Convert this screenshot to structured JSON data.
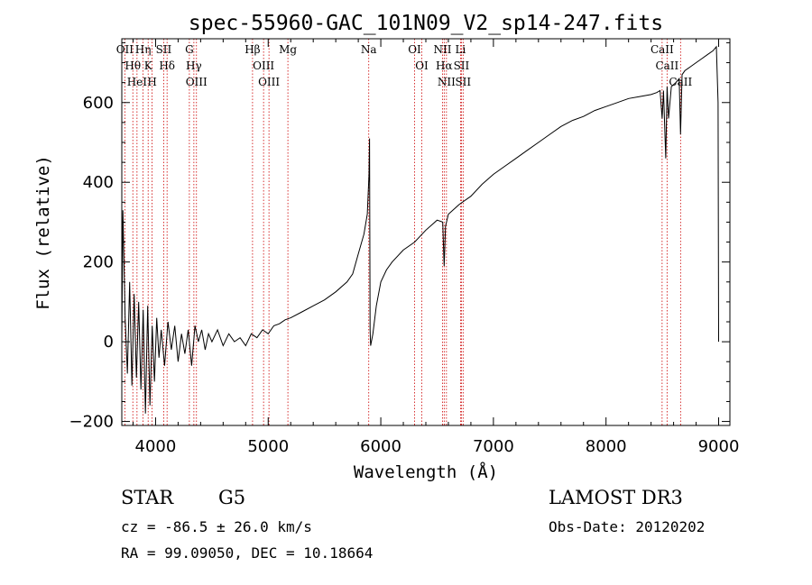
{
  "chart_data": {
    "type": "line",
    "title": "spec-55960-GAC_101N09_V2_sp14-247.fits",
    "xlabel": "Wavelength (Å)",
    "ylabel": "Flux (relative)",
    "xlim": [
      3700,
      9100
    ],
    "ylim": [
      -210,
      760
    ],
    "xticks": [
      4000,
      5000,
      6000,
      7000,
      8000,
      9000
    ],
    "yticks": [
      -200,
      0,
      200,
      400,
      600
    ],
    "x_minor_step": 200,
    "y_minor_step": 50,
    "grid": false,
    "series": [
      {
        "name": "flux",
        "x": [
          3700,
          3710,
          3730,
          3750,
          3770,
          3790,
          3810,
          3830,
          3850,
          3870,
          3890,
          3910,
          3930,
          3950,
          3970,
          3990,
          4010,
          4030,
          4050,
          4080,
          4110,
          4140,
          4170,
          4200,
          4230,
          4260,
          4290,
          4320,
          4350,
          4380,
          4410,
          4440,
          4470,
          4500,
          4550,
          4600,
          4650,
          4700,
          4750,
          4800,
          4850,
          4900,
          4950,
          5000,
          5050,
          5100,
          5150,
          5200,
          5300,
          5400,
          5500,
          5600,
          5700,
          5750,
          5800,
          5850,
          5880,
          5895,
          5900,
          5905,
          5910,
          5930,
          5960,
          6000,
          6050,
          6100,
          6200,
          6300,
          6400,
          6500,
          6550,
          6563,
          6575,
          6600,
          6700,
          6800,
          6900,
          7000,
          7100,
          7200,
          7300,
          7400,
          7500,
          7600,
          7700,
          7800,
          7900,
          8000,
          8100,
          8200,
          8300,
          8400,
          8450,
          8480,
          8498,
          8510,
          8530,
          8542,
          8555,
          8580,
          8620,
          8650,
          8662,
          8675,
          8700,
          8750,
          8800,
          8850,
          8900,
          8950,
          8980,
          8995,
          9000
        ],
        "y": [
          0,
          330,
          60,
          -80,
          150,
          -110,
          120,
          -90,
          100,
          -120,
          80,
          -180,
          90,
          -160,
          40,
          -100,
          60,
          -40,
          30,
          -60,
          50,
          -20,
          40,
          -50,
          20,
          -30,
          30,
          -60,
          40,
          0,
          30,
          -20,
          20,
          0,
          30,
          -10,
          20,
          0,
          10,
          -10,
          20,
          10,
          30,
          20,
          40,
          45,
          55,
          60,
          75,
          90,
          105,
          125,
          150,
          170,
          220,
          270,
          320,
          420,
          510,
          30,
          -10,
          20,
          90,
          150,
          180,
          200,
          230,
          250,
          280,
          305,
          300,
          190,
          290,
          320,
          345,
          365,
          395,
          420,
          440,
          460,
          480,
          500,
          520,
          540,
          555,
          565,
          580,
          590,
          600,
          610,
          615,
          620,
          625,
          630,
          560,
          630,
          460,
          640,
          560,
          640,
          650,
          660,
          520,
          670,
          680,
          690,
          700,
          710,
          720,
          730,
          740,
          600,
          0
        ],
        "color": "#000000"
      }
    ],
    "lines": [
      {
        "x": 3727,
        "labels": [
          "OII"
        ]
      },
      {
        "x": 3798,
        "labels": [
          "Hθ"
        ]
      },
      {
        "x": 3835,
        "labels": [
          "HeI"
        ]
      },
      {
        "x": 3889,
        "labels": [
          "Hη"
        ]
      },
      {
        "x": 3934,
        "labels": [
          "K"
        ]
      },
      {
        "x": 3969,
        "labels": [
          "H"
        ]
      },
      {
        "x": 4072,
        "labels": [
          "SII"
        ]
      },
      {
        "x": 4102,
        "labels": [
          "Hδ"
        ]
      },
      {
        "x": 4300,
        "labels": [
          "G"
        ]
      },
      {
        "x": 4340,
        "labels": [
          "Hγ"
        ]
      },
      {
        "x": 4363,
        "labels": [
          "OIII"
        ]
      },
      {
        "x": 4861,
        "labels": [
          "Hβ"
        ]
      },
      {
        "x": 4959,
        "labels": [
          "OIII"
        ]
      },
      {
        "x": 5007,
        "labels": [
          "OIII"
        ]
      },
      {
        "x": 5175,
        "labels": [
          "Mg"
        ]
      },
      {
        "x": 5893,
        "labels": [
          "Na"
        ]
      },
      {
        "x": 6300,
        "labels": [
          "OI"
        ]
      },
      {
        "x": 6364,
        "labels": [
          "OI"
        ]
      },
      {
        "x": 6548,
        "labels": [
          "NII"
        ]
      },
      {
        "x": 6563,
        "labels": [
          "Hα"
        ]
      },
      {
        "x": 6583,
        "labels": [
          "NII"
        ]
      },
      {
        "x": 6708,
        "labels": [
          "Li"
        ]
      },
      {
        "x": 6716,
        "labels": [
          "SII"
        ]
      },
      {
        "x": 6731,
        "labels": [
          "SII"
        ]
      },
      {
        "x": 8498,
        "labels": [
          "CaII"
        ]
      },
      {
        "x": 8542,
        "labels": [
          "CaII"
        ]
      },
      {
        "x": 8662,
        "labels": [
          "CaII"
        ]
      }
    ],
    "line_color": "#cc0000"
  },
  "info": {
    "object_class": "STAR",
    "subclass": "G5",
    "survey": "LAMOST DR3",
    "redshift": "cz = -86.5 ± 26.0 km/s",
    "obs_date": "Obs-Date: 20120202",
    "coords": "RA =  99.09050, DEC =  10.18664"
  }
}
